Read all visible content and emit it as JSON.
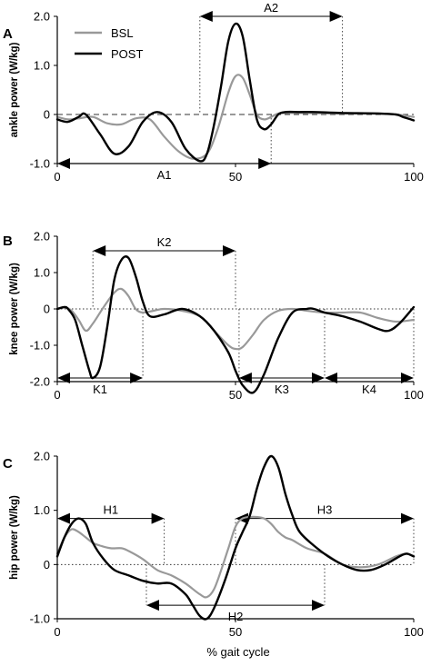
{
  "x_axis_label": "% gait cycle",
  "chart_data": [
    {
      "panel": "A",
      "type": "line",
      "ylabel": "ankle power (W/kg)",
      "xlim": [
        0,
        100
      ],
      "ylim": [
        -1.0,
        2.0
      ],
      "xticks": [
        "0",
        "50",
        "100"
      ],
      "yticks": [
        "-1.0",
        "0",
        "1.0",
        "2.0"
      ],
      "legend": {
        "position": "top-left",
        "entries": [
          "BSL",
          "POST"
        ]
      },
      "series": [
        {
          "name": "BSL",
          "color": "#999999",
          "x": [
            0,
            3,
            6,
            10,
            14,
            18,
            22,
            26,
            30,
            34,
            38,
            42,
            45,
            48,
            50,
            52,
            54,
            56,
            58,
            60,
            62,
            65,
            70,
            80,
            90,
            95,
            100
          ],
          "y": [
            -0.05,
            -0.1,
            -0.08,
            -0.05,
            -0.18,
            -0.2,
            -0.08,
            -0.1,
            -0.45,
            -0.75,
            -0.9,
            -0.8,
            -0.3,
            0.45,
            0.78,
            0.75,
            0.4,
            0.0,
            -0.1,
            -0.05,
            0.02,
            0.03,
            0.03,
            0.02,
            0.02,
            0.0,
            -0.05
          ]
        },
        {
          "name": "POST",
          "color": "#000000",
          "x": [
            0,
            3,
            6,
            8,
            12,
            16,
            20,
            24,
            28,
            32,
            36,
            40,
            42,
            44,
            46,
            48,
            50,
            52,
            54,
            56,
            58,
            60,
            62,
            64,
            68,
            72,
            80,
            90,
            95,
            97,
            100
          ],
          "y": [
            -0.1,
            -0.15,
            -0.05,
            0.0,
            -0.4,
            -0.8,
            -0.65,
            -0.15,
            0.05,
            -0.15,
            -0.7,
            -0.95,
            -0.8,
            -0.2,
            0.6,
            1.5,
            1.85,
            1.6,
            0.7,
            -0.1,
            -0.3,
            -0.2,
            0.0,
            0.05,
            0.05,
            0.05,
            0.03,
            0.02,
            0.0,
            -0.05,
            -0.12
          ]
        }
      ],
      "annotations": [
        {
          "label": "A1",
          "from": 0,
          "to": 60,
          "y": -1.0
        },
        {
          "label": "A2",
          "from": 40,
          "to": 80,
          "y": 2.0
        }
      ],
      "baseline": "dashed"
    },
    {
      "panel": "B",
      "type": "line",
      "ylabel": "knee power (W/kg)",
      "xlim": [
        0,
        100
      ],
      "ylim": [
        -2.0,
        2.0
      ],
      "xticks": [
        "0",
        "50",
        "100"
      ],
      "yticks": [
        "-2.0",
        "-1.0",
        "0",
        "1.0",
        "2.0"
      ],
      "series": [
        {
          "name": "BSL",
          "color": "#999999",
          "x": [
            0,
            2,
            4,
            6,
            8,
            10,
            13,
            16,
            18,
            20,
            22,
            24,
            27,
            30,
            35,
            40,
            44,
            48,
            50,
            52,
            55,
            58,
            62,
            66,
            70,
            75,
            80,
            85,
            90,
            95,
            100
          ],
          "y": [
            0.0,
            0.05,
            -0.05,
            -0.3,
            -0.6,
            -0.4,
            0.05,
            0.45,
            0.55,
            0.35,
            0.0,
            -0.1,
            -0.05,
            0.0,
            -0.05,
            -0.2,
            -0.6,
            -1.0,
            -1.1,
            -1.05,
            -0.7,
            -0.3,
            -0.05,
            0.0,
            -0.05,
            -0.1,
            -0.1,
            -0.1,
            -0.25,
            -0.35,
            -0.3
          ]
        },
        {
          "name": "POST",
          "color": "#000000",
          "x": [
            0,
            2,
            3,
            5,
            7,
            9,
            10,
            12,
            14,
            16,
            18,
            20,
            22,
            24,
            26,
            30,
            35,
            40,
            44,
            48,
            50,
            52,
            55,
            58,
            62,
            66,
            70,
            72,
            75,
            80,
            85,
            90,
            93,
            96,
            100
          ],
          "y": [
            0.0,
            0.05,
            0.0,
            -0.3,
            -1.0,
            -1.7,
            -1.9,
            -1.6,
            -0.5,
            0.8,
            1.35,
            1.4,
            0.9,
            0.2,
            -0.2,
            -0.15,
            0.0,
            -0.2,
            -0.6,
            -1.2,
            -1.7,
            -2.1,
            -2.3,
            -1.8,
            -0.8,
            -0.1,
            0.0,
            0.0,
            -0.1,
            -0.2,
            -0.35,
            -0.55,
            -0.6,
            -0.4,
            0.05
          ]
        }
      ],
      "annotations": [
        {
          "label": "K1",
          "from": 0,
          "to": 24,
          "y": -1.9
        },
        {
          "label": "K2",
          "from": 10,
          "to": 50,
          "y": 1.6
        },
        {
          "label": "K3",
          "from": 51,
          "to": 75,
          "y": -1.9
        },
        {
          "label": "K4",
          "from": 75,
          "to": 100,
          "y": -1.9
        }
      ],
      "baseline": "dotted"
    },
    {
      "panel": "C",
      "type": "line",
      "ylabel": "hip power (W/kg)",
      "xlim": [
        0,
        100
      ],
      "ylim": [
        -1.0,
        2.0
      ],
      "xticks": [
        "0",
        "50",
        "100"
      ],
      "yticks": [
        "-1.0",
        "0",
        "1.0",
        "2.0"
      ],
      "series": [
        {
          "name": "BSL",
          "color": "#999999",
          "x": [
            0,
            2,
            4,
            6,
            8,
            10,
            12,
            15,
            18,
            20,
            24,
            28,
            32,
            36,
            40,
            42,
            44,
            46,
            48,
            50,
            52,
            55,
            58,
            60,
            62,
            64,
            66,
            70,
            75,
            80,
            85,
            90,
            95,
            98,
            100
          ],
          "y": [
            0.2,
            0.5,
            0.65,
            0.6,
            0.5,
            0.4,
            0.35,
            0.3,
            0.3,
            0.25,
            0.1,
            -0.1,
            -0.2,
            -0.35,
            -0.55,
            -0.6,
            -0.45,
            -0.1,
            0.3,
            0.7,
            0.85,
            0.88,
            0.85,
            0.75,
            0.6,
            0.5,
            0.45,
            0.3,
            0.2,
            0.0,
            -0.05,
            0.0,
            0.15,
            0.2,
            0.15
          ]
        },
        {
          "name": "POST",
          "color": "#000000",
          "x": [
            0,
            2,
            4,
            6,
            8,
            10,
            13,
            16,
            20,
            24,
            28,
            32,
            36,
            38,
            40,
            42,
            44,
            47,
            50,
            52,
            54,
            56,
            58,
            60,
            62,
            64,
            66,
            68,
            72,
            76,
            80,
            84,
            88,
            92,
            96,
            98,
            100
          ],
          "y": [
            0.15,
            0.5,
            0.75,
            0.85,
            0.75,
            0.4,
            0.1,
            -0.1,
            -0.2,
            -0.3,
            -0.35,
            -0.35,
            -0.55,
            -0.75,
            -0.95,
            -1.0,
            -0.8,
            -0.3,
            0.3,
            0.6,
            0.9,
            1.4,
            1.8,
            2.0,
            1.8,
            1.3,
            0.9,
            0.6,
            0.35,
            0.15,
            0.0,
            -0.1,
            -0.1,
            0.0,
            0.15,
            0.2,
            0.15
          ]
        }
      ],
      "annotations": [
        {
          "label": "H1",
          "from": 0,
          "to": 30,
          "y": 0.85
        },
        {
          "label": "H2",
          "from": 25,
          "to": 75,
          "y": -0.75
        },
        {
          "label": "H3",
          "from": 50,
          "to": 100,
          "y": 0.85
        }
      ],
      "baseline": "dotted"
    }
  ]
}
